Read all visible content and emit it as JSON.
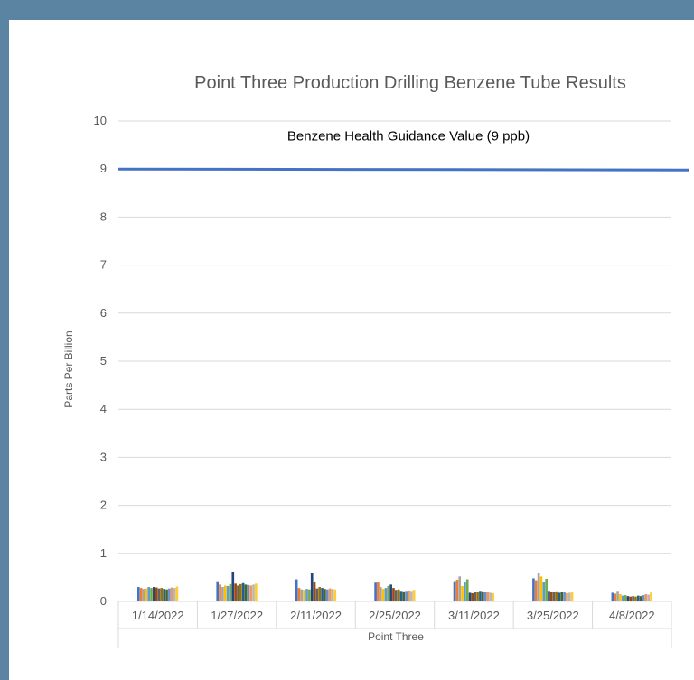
{
  "chart_data": {
    "type": "bar",
    "title": "Point Three Production Drilling Benzene Tube Results",
    "ylabel": "Parts Per Billion",
    "xlabel": "Point Three",
    "ylim": [
      0,
      10
    ],
    "yticks": [
      0,
      1,
      2,
      3,
      4,
      5,
      6,
      7,
      8,
      9,
      10
    ],
    "grid": true,
    "categories": [
      "1/14/2022",
      "1/27/2022",
      "2/11/2022",
      "2/25/2022",
      "3/11/2022",
      "3/25/2022",
      "4/8/2022"
    ],
    "series_colors": [
      "#4472c4",
      "#ed7d31",
      "#a5a5a5",
      "#ffc000",
      "#5b9bd5",
      "#70ad47",
      "#264478",
      "#9e480e",
      "#636363",
      "#997300",
      "#255e91",
      "#43682b",
      "#698ed0",
      "#f1975a",
      "#b7b7b7",
      "#ffcd33"
    ],
    "group_values": [
      [
        0.3,
        0.28,
        0.26,
        0.27,
        0.3,
        0.28,
        0.3,
        0.29,
        0.27,
        0.28,
        0.26,
        0.25,
        0.27,
        0.29,
        0.28,
        0.31
      ],
      [
        0.42,
        0.35,
        0.3,
        0.33,
        0.32,
        0.36,
        0.62,
        0.37,
        0.33,
        0.36,
        0.38,
        0.35,
        0.34,
        0.33,
        0.35,
        0.37
      ],
      [
        0.46,
        0.28,
        0.25,
        0.24,
        0.26,
        0.25,
        0.6,
        0.4,
        0.27,
        0.3,
        0.28,
        0.26,
        0.25,
        0.27,
        0.26,
        0.25
      ],
      [
        0.39,
        0.4,
        0.3,
        0.26,
        0.28,
        0.32,
        0.35,
        0.28,
        0.24,
        0.25,
        0.22,
        0.21,
        0.22,
        0.23,
        0.22,
        0.24
      ],
      [
        0.42,
        0.45,
        0.52,
        0.32,
        0.4,
        0.46,
        0.18,
        0.17,
        0.19,
        0.2,
        0.22,
        0.21,
        0.2,
        0.19,
        0.18,
        0.17
      ],
      [
        0.48,
        0.44,
        0.6,
        0.52,
        0.4,
        0.47,
        0.22,
        0.2,
        0.19,
        0.21,
        0.18,
        0.2,
        0.19,
        0.17,
        0.18,
        0.2
      ],
      [
        0.18,
        0.16,
        0.22,
        0.15,
        0.12,
        0.13,
        0.11,
        0.1,
        0.11,
        0.1,
        0.12,
        0.11,
        0.13,
        0.15,
        0.14,
        0.19
      ]
    ],
    "reference_line": {
      "value": 9,
      "label": "Benzene Health Guidance Value (9 ppb)",
      "color": "#4472c4"
    }
  }
}
